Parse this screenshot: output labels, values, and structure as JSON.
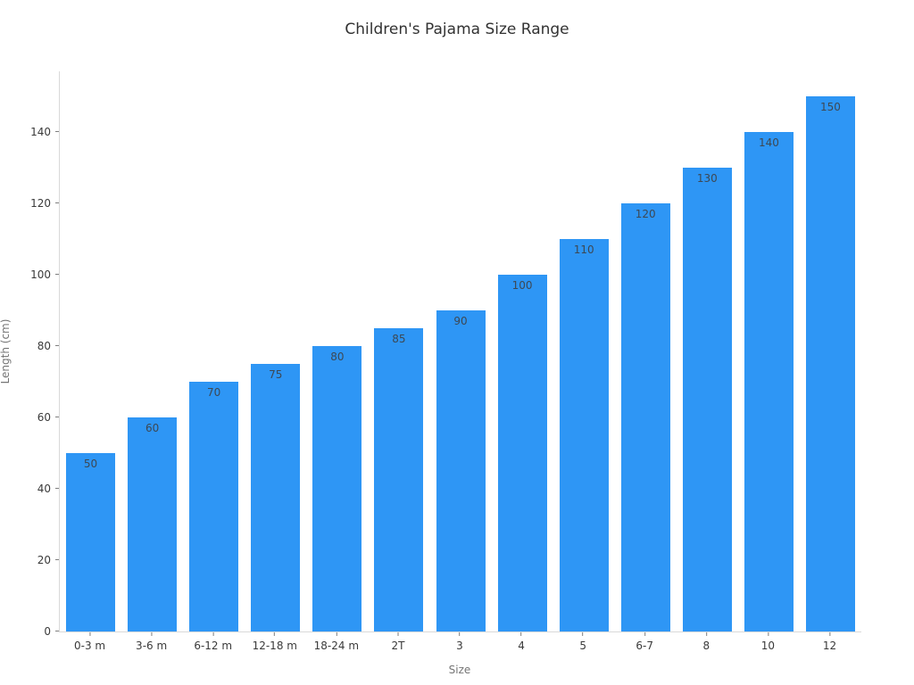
{
  "chart_data": {
    "type": "bar",
    "title": "Children's Pajama Size Range",
    "xlabel": "Size",
    "ylabel": "Length (cm)",
    "categories": [
      "0-3 m",
      "3-6 m",
      "6-12 m",
      "12-18 m",
      "18-24 m",
      "2T",
      "3",
      "4",
      "5",
      "6-7",
      "8",
      "10",
      "12"
    ],
    "values": [
      50,
      60,
      70,
      75,
      80,
      85,
      90,
      100,
      110,
      120,
      130,
      140,
      150
    ],
    "bar_value_labels": [
      "50",
      "60",
      "70",
      "75",
      "80",
      "85",
      "90",
      "100",
      "110",
      "120",
      "130",
      "140",
      "150"
    ],
    "yticks": [
      0,
      20,
      40,
      60,
      80,
      100,
      120,
      140
    ],
    "ylim": [
      0,
      157
    ],
    "grid": false,
    "legend": "none",
    "colors": {
      "bar": "#2E96F5",
      "bar_label": "#3D4854",
      "tick_label": "#3A3A3A",
      "axis_label": "#757575",
      "spine": "#D9D9D9",
      "tick_mark": "#7F7F7F",
      "title": "#323232",
      "background": "#FFFFFF"
    }
  }
}
